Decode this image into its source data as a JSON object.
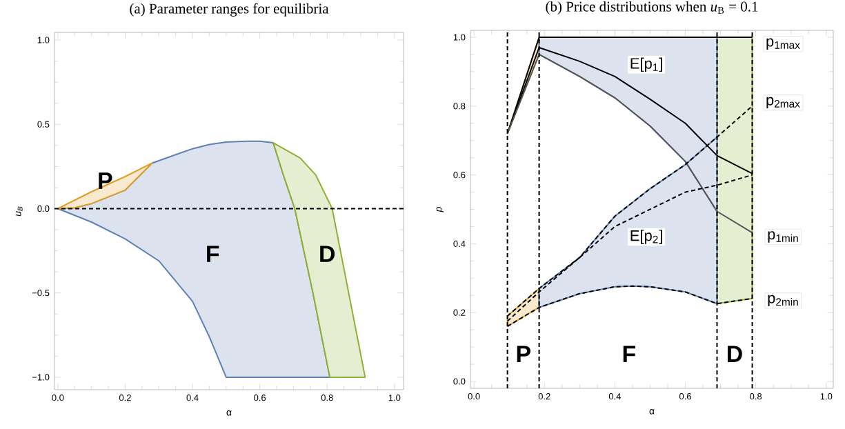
{
  "chart_data": [
    {
      "type": "area",
      "title": "(a) Parameter ranges for equilibria",
      "xlabel": "α",
      "ylabel": "*u*$_{B}$",
      "xlim": [
        -0.01,
        1.027
      ],
      "ylim": [
        -1.074,
        1.045
      ],
      "xticks": [
        {
          "value": 0,
          "label": "0.0"
        },
        {
          "value": 0.2,
          "label": "0.2"
        },
        {
          "value": 0.4,
          "label": "0.4"
        },
        {
          "value": 0.6,
          "label": "0.6"
        },
        {
          "value": 0.8,
          "label": "0.8"
        },
        {
          "value": 1,
          "label": "1.0"
        }
      ],
      "yticks": [
        {
          "value": -1,
          "label": "−1.0"
        },
        {
          "value": -0.5,
          "label": "−0.5"
        },
        {
          "value": 0,
          "label": "0.0"
        },
        {
          "value": 0.5,
          "label": "0.5"
        },
        {
          "value": 1,
          "label": "1.0"
        }
      ],
      "series": [
        {
          "color": "#5e81b5",
          "x": [
            0,
            0.05,
            0.1,
            0.2,
            0.24,
            0.28,
            0.35,
            0.4,
            0.45,
            0.5,
            0.56,
            0.6,
            0.64,
            0.67,
            0.704,
            0.758,
            0.808,
            0.5,
            0.45,
            0.4,
            0.3,
            0.2,
            0.1
          ],
          "values": [
            0,
            0.005,
            0.03,
            0.11,
            0.19,
            0.27,
            0.32,
            0.355,
            0.38,
            0.395,
            0.4,
            0.4,
            0.39,
            0.2,
            0,
            -0.5,
            -1,
            -1,
            -0.76,
            -0.55,
            -0.31,
            -0.18,
            -0.08
          ]
        },
        {
          "color": "#e19c24",
          "x": [
            0,
            0.1,
            0.2,
            0.28,
            0.24,
            0.2,
            0.1,
            0.05
          ],
          "values": [
            0,
            0.1,
            0.19,
            0.27,
            0.19,
            0.11,
            0.03,
            0.005
          ]
        },
        {
          "color": "#8fb032",
          "x": [
            0.64,
            0.72,
            0.766,
            0.815,
            0.864,
            0.913,
            0.808,
            0.758,
            0.704,
            0.67
          ],
          "values": [
            0.39,
            0.3,
            0.2,
            0,
            -0.5,
            -1,
            -1,
            -0.5,
            0,
            0.2
          ]
        }
      ],
      "ref_lines": [
        {
          "axis": "y",
          "value": 0,
          "color": "#000000",
          "line_style": "dashed"
        }
      ],
      "annotations": [
        "P",
        "F",
        "D"
      ]
    },
    {
      "type": "line",
      "title": "(b) Price distributions when *u*$_{B}$ = 0.1",
      "xlabel": "α",
      "ylabel": "p",
      "xlim": [
        -0.01,
        1.02
      ],
      "ylim": [
        -0.02,
        1.02
      ],
      "xticks": [
        {
          "value": 0,
          "label": "0.0"
        },
        {
          "value": 0.2,
          "label": "0.2"
        },
        {
          "value": 0.4,
          "label": "0.4"
        },
        {
          "value": 0.6,
          "label": "0.6"
        },
        {
          "value": 0.8,
          "label": "0.8"
        },
        {
          "value": 1,
          "label": "1.0"
        }
      ],
      "yticks": [
        {
          "value": 0,
          "label": "0.0"
        },
        {
          "value": 0.2,
          "label": "0.2"
        },
        {
          "value": 0.4,
          "label": "0.4"
        },
        {
          "value": 0.6,
          "label": "0.6"
        },
        {
          "value": 0.8,
          "label": "0.8"
        },
        {
          "value": 1,
          "label": "1.0"
        }
      ],
      "series": [
        {
          "type": "area",
          "color": "#8fb032",
          "x": [
            0.69,
            0.79,
            0.79,
            0.69
          ],
          "values": [
            1.0,
            1.0,
            0.241,
            0.226
          ]
        },
        {
          "type": "area",
          "color": "#e19c24",
          "x": [
            0.095,
            0.185,
            0.185,
            null,
            0.095,
            0.185,
            0.185,
            0.095
          ],
          "values": [
            0.72,
            1.0,
            0.95,
            null,
            0.19,
            0.27,
            0.215,
            0.16
          ]
        },
        {
          "type": "area",
          "color": "#5e81b5",
          "x": [
            0.185,
            0.69,
            0.69,
            0.6,
            0.5,
            0.4,
            0.3,
            0.185,
            null,
            0.185,
            0.3,
            0.4,
            0.5,
            0.6,
            0.69,
            0.69,
            0.6,
            0.5,
            0.45,
            0.4,
            0.3,
            0.185
          ],
          "values": [
            1.0,
            1.0,
            0.494,
            0.639,
            0.742,
            0.824,
            0.886,
            0.95,
            null,
            0.27,
            0.36,
            0.48,
            0.56,
            0.63,
            0.71,
            0.226,
            0.26,
            0.275,
            0.277,
            0.275,
            0.255,
            0.215
          ]
        },
        {
          "color": "#000000",
          "line_style": "solid",
          "x": [
            0.095,
            0.185,
            0.79
          ],
          "values": [
            0.72,
            1.0,
            1.0
          ]
        },
        {
          "color": "#000000",
          "line_style": "solid",
          "x": [
            0.095,
            0.185,
            0.3,
            0.4,
            0.5,
            0.6,
            0.69,
            0.79
          ],
          "values": [
            0.72,
            0.97,
            0.93,
            0.886,
            0.82,
            0.75,
            0.656,
            0.604
          ]
        },
        {
          "color": "#555555",
          "line_style": "solid",
          "x": [
            0.095,
            0.185,
            0.3,
            0.4,
            0.5,
            0.6,
            0.69,
            0.79
          ],
          "values": [
            0.72,
            0.95,
            0.886,
            0.824,
            0.742,
            0.639,
            0.494,
            0.432
          ]
        },
        {
          "color": "#000000",
          "line_style": "dashed",
          "x": [
            0.095,
            0.185,
            0.3,
            0.4,
            0.5,
            0.6,
            0.69,
            0.79
          ],
          "values": [
            0.19,
            0.27,
            0.36,
            0.48,
            0.56,
            0.63,
            0.71,
            0.8
          ]
        },
        {
          "color": "#000000",
          "line_style": "dashed",
          "x": [
            0.095,
            0.185,
            0.3,
            0.4,
            0.5,
            0.6,
            0.69,
            0.79
          ],
          "values": [
            0.175,
            0.26,
            0.36,
            0.45,
            0.5,
            0.55,
            0.57,
            0.6
          ]
        },
        {
          "color": "#000000",
          "line_style": "dashed",
          "x": [
            0.095,
            0.185,
            0.3,
            0.4,
            0.45,
            0.5,
            0.6,
            0.69,
            0.79
          ],
          "values": [
            0.16,
            0.215,
            0.255,
            0.275,
            0.277,
            0.275,
            0.26,
            0.226,
            0.241
          ]
        }
      ],
      "ref_lines": [
        {
          "axis": "x",
          "value": 0.095,
          "color": "#000000",
          "line_style": "dashed"
        },
        {
          "axis": "x",
          "value": 0.185,
          "color": "#000000",
          "line_style": "dashed"
        },
        {
          "axis": "x",
          "value": 0.69,
          "color": "#000000",
          "line_style": "dashed"
        },
        {
          "axis": "x",
          "value": 0.79,
          "color": "#000000",
          "line_style": "dashed"
        }
      ],
      "annotations": [
        "P",
        "F",
        "D",
        "E[p$_{1}$]",
        "E[p$_{2}$]",
        "p$_{1max}$",
        "p$_{2max}$",
        "p$_{1min}$",
        "p$_{2min}$"
      ]
    }
  ]
}
